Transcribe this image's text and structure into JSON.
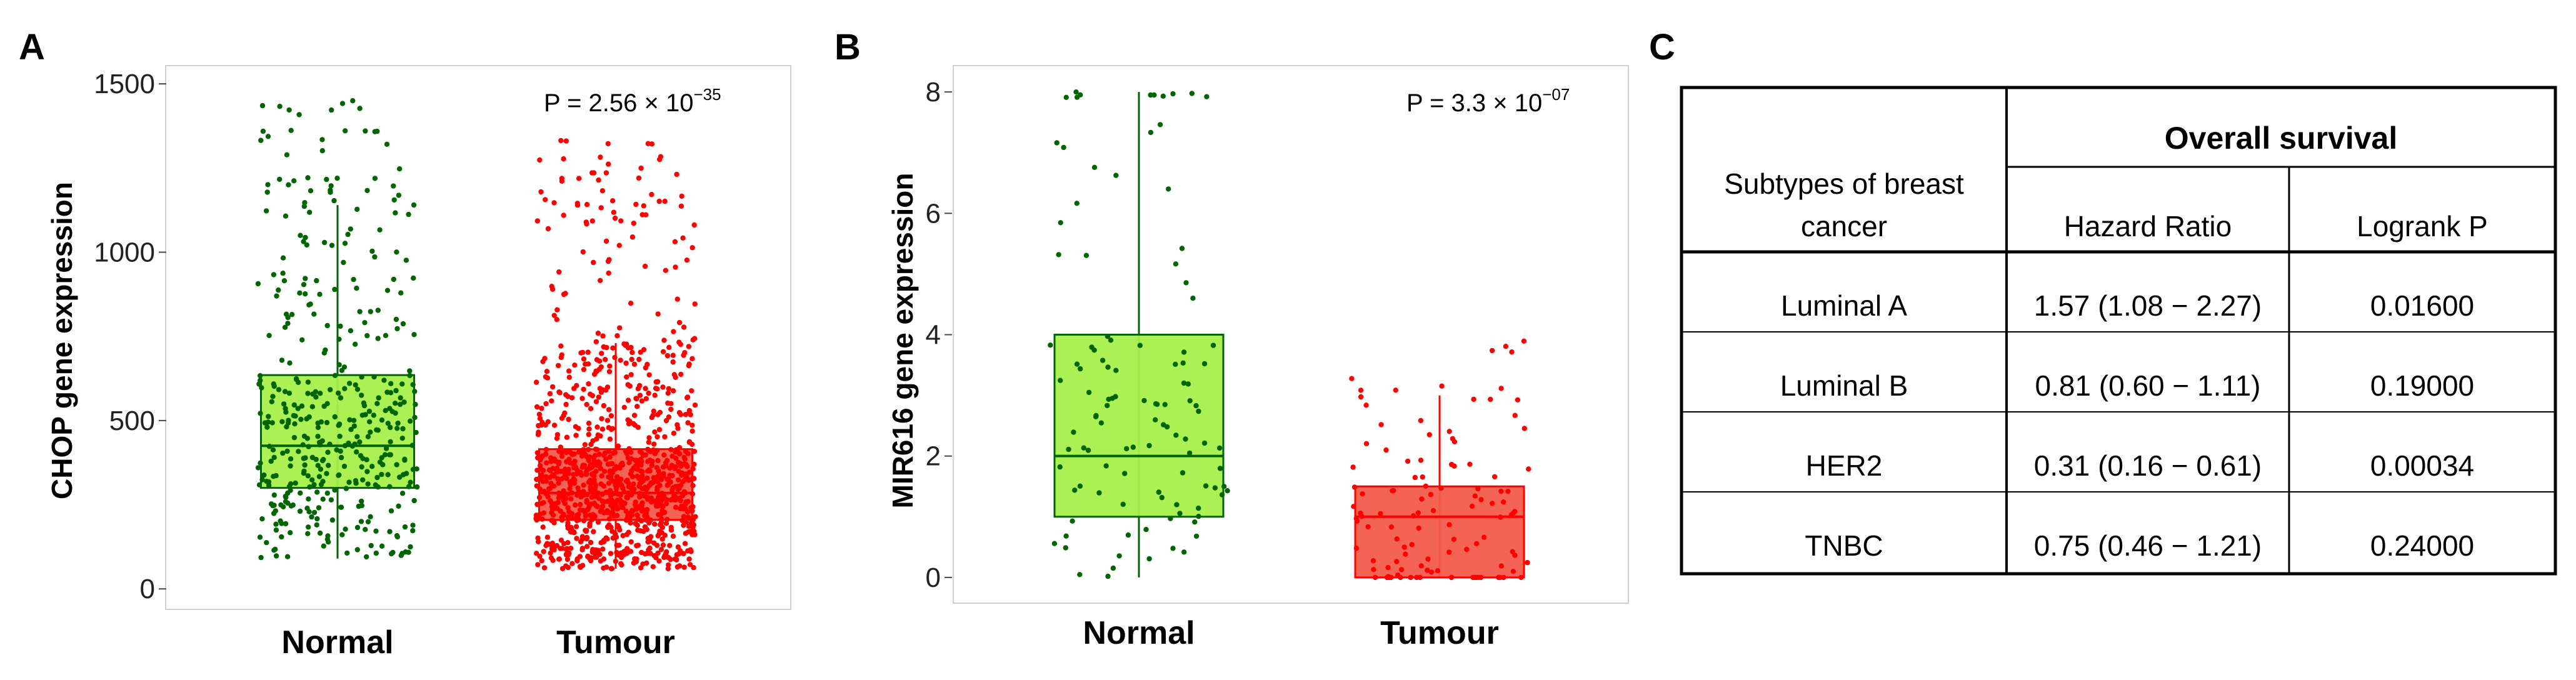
{
  "panels": {
    "A": {
      "letter": "A",
      "ylabel": "CHOP gene expression",
      "pvalue_prefix": "P = 2.56 × 10",
      "pvalue_exp": "−35",
      "yticks": [
        "0",
        "500",
        "1000",
        "1500"
      ]
    },
    "B": {
      "letter": "B",
      "ylabel": "MIR616 gene expression",
      "pvalue_prefix": "P = 3.3 × 10",
      "pvalue_exp": "−07",
      "yticks": [
        "0",
        "2",
        "4",
        "6",
        "8"
      ]
    },
    "C": {
      "letter": "C"
    }
  },
  "chart_data": [
    {
      "type": "box",
      "panel": "A",
      "categories": [
        "Normal",
        "Tumour"
      ],
      "ylabel": "CHOP gene expression",
      "ylim": [
        -20,
        1530
      ],
      "yticks": [
        0,
        500,
        1000,
        1500
      ],
      "annotation": "P = 2.56 × 10−35",
      "grid": false,
      "boxes": [
        {
          "name": "Normal",
          "min": 90,
          "q1": 300,
          "median": 425,
          "q3": 635,
          "max": 1140,
          "n_points": 420,
          "point_max": 1450,
          "color": "#006400",
          "fill": "#a6f04a"
        },
        {
          "name": "Tumour",
          "min": 60,
          "q1": 205,
          "median": 285,
          "q3": 415,
          "max": 730,
          "n_points": 1100,
          "point_max": 1335,
          "color": "#ff0000",
          "fill": "#f25c4c"
        }
      ]
    },
    {
      "type": "box",
      "panel": "B",
      "categories": [
        "Normal",
        "Tumour"
      ],
      "ylabel": "MIR616 gene expression",
      "ylim": [
        -0.3,
        8.3
      ],
      "yticks": [
        0,
        2,
        4,
        6,
        8
      ],
      "annotation": "P = 3.3 × 10−07",
      "grid": false,
      "boxes": [
        {
          "name": "Normal",
          "min": 0,
          "q1": 1.0,
          "median": 2.0,
          "q3": 4.0,
          "max": 8.0,
          "n_points": 110,
          "point_max": 7.9,
          "color": "#006400",
          "fill": "#a6f04a"
        },
        {
          "name": "Tumour",
          "min": 0,
          "q1": 0,
          "median": 1.0,
          "q3": 1.5,
          "max": 3.0,
          "n_points": 115,
          "point_max": 4.4,
          "color": "#ff0000",
          "fill": "#f25c4c"
        }
      ]
    },
    {
      "type": "table",
      "panel": "C",
      "header_group": "Overall survival",
      "row_header": [
        "Subtypes of breast",
        "cancer"
      ],
      "columns": [
        "Hazard Ratio",
        "Logrank P"
      ],
      "rows": [
        {
          "subtype": "Luminal A",
          "hazard_ratio": "1.57 (1.08 − 2.27)",
          "logrank_p": "0.01600"
        },
        {
          "subtype": "Luminal B",
          "hazard_ratio": "0.81 (0.60 − 1.11)",
          "logrank_p": "0.19000"
        },
        {
          "subtype": "HER2",
          "hazard_ratio": "0.31 (0.16 − 0.61)",
          "logrank_p": "0.00034"
        },
        {
          "subtype": "TNBC",
          "hazard_ratio": "0.75 (0.46 − 1.21)",
          "logrank_p": "0.24000"
        }
      ]
    }
  ]
}
